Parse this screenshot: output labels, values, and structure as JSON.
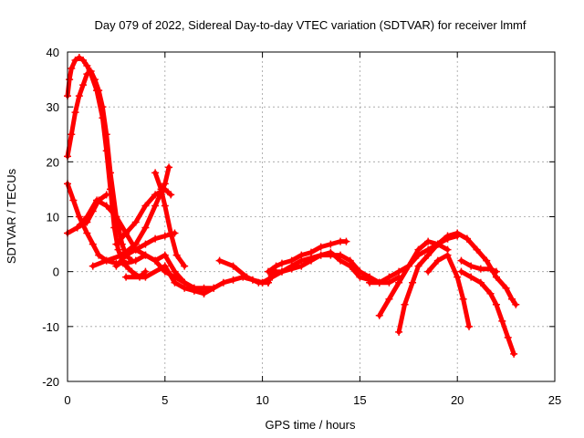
{
  "chart_data": {
    "type": "scatter",
    "title": "Day 079 of 2022, Sidereal Day-to-day VTEC variation (SDTVAR) for receiver lmmf",
    "xlabel": "GPS time / hours",
    "ylabel": "SDTVAR / TECUs",
    "xlim": [
      0,
      25
    ],
    "ylim": [
      -20,
      40
    ],
    "xticks": [
      0,
      5,
      10,
      15,
      20,
      25
    ],
    "yticks": [
      -20,
      -10,
      0,
      10,
      20,
      30,
      40
    ],
    "xtick_labels": [
      "0",
      "5",
      "10",
      "15",
      "20",
      "25"
    ],
    "ytick_labels": [
      "-20",
      "-10",
      "0",
      "10",
      "20",
      "30",
      "40"
    ],
    "grid": true,
    "legend": "none",
    "marker": "+",
    "color": "#ff0000",
    "series": [
      {
        "name": "s1",
        "x": [
          0,
          0.1,
          0.2,
          0.4,
          0.6,
          0.8,
          1.0,
          1.2,
          1.5,
          1.8,
          2.0,
          2.2,
          2.4,
          2.6,
          2.8,
          3.0,
          3.3,
          3.7,
          4.0
        ],
        "y": [
          32,
          35,
          37,
          38.5,
          39,
          38.5,
          37.5,
          36,
          33,
          28,
          22,
          15,
          8,
          4,
          2,
          1,
          0,
          -1,
          0
        ]
      },
      {
        "name": "s2",
        "x": [
          0,
          0.2,
          0.4,
          0.6,
          0.8,
          1.0,
          1.2,
          1.4,
          1.6,
          1.8,
          2.0,
          2.2,
          2.5,
          2.8,
          3.0,
          3.3
        ],
        "y": [
          21,
          25,
          29,
          32,
          34,
          36,
          36.5,
          35,
          33,
          30,
          25,
          18,
          10,
          5,
          3,
          2
        ]
      },
      {
        "name": "s3",
        "x": [
          0,
          0.3,
          0.6,
          1.0,
          1.3,
          1.6,
          2.0,
          2.5,
          3.0,
          3.5,
          4.0,
          4.5,
          5.0,
          5.5,
          6.0,
          6.5,
          7.0,
          7.5,
          8.0,
          8.5,
          9.0,
          9.5,
          10.0
        ],
        "y": [
          16,
          13,
          10,
          7,
          5,
          3,
          2,
          1.5,
          1.5,
          2,
          3,
          2,
          0,
          -1,
          -2,
          -3,
          -3,
          -3,
          -2,
          -1.5,
          -1,
          -1.5,
          -2
        ]
      },
      {
        "name": "s4",
        "x": [
          0,
          0.5,
          1.0,
          1.5,
          2.0,
          2.5,
          3.0,
          3.5,
          4.0,
          4.5,
          5.0,
          5.5,
          6.0,
          6.5,
          7.0
        ],
        "y": [
          7,
          8,
          10,
          13,
          12,
          10,
          7,
          4,
          3,
          2,
          3,
          0,
          -2,
          -3,
          -4
        ]
      },
      {
        "name": "s5",
        "x": [
          0.5,
          1.0,
          1.3,
          1.6,
          2.0
        ],
        "y": [
          8,
          9,
          11,
          13,
          14
        ]
      },
      {
        "name": "s6",
        "x": [
          1.3,
          2.0,
          2.8,
          3.5,
          4.0,
          4.5,
          5.0,
          5.2
        ],
        "y": [
          1,
          2,
          3,
          5,
          8,
          12,
          16,
          19
        ]
      },
      {
        "name": "s7",
        "x": [
          2.5,
          3.0,
          3.5,
          4.0,
          4.5,
          5.0,
          5.3
        ],
        "y": [
          5,
          7,
          9,
          12,
          14,
          15,
          14
        ]
      },
      {
        "name": "s8",
        "x": [
          2.5,
          3.0,
          3.5,
          4.0,
          4.5,
          5.0,
          5.5
        ],
        "y": [
          1,
          3,
          4,
          5,
          6,
          6.5,
          7
        ]
      },
      {
        "name": "s9",
        "x": [
          4.5,
          4.8,
          5.0,
          5.3,
          5.6,
          6.0
        ],
        "y": [
          18,
          15,
          12,
          7,
          3,
          1
        ]
      },
      {
        "name": "s10",
        "x": [
          3.0,
          4.0,
          5.0,
          5.5,
          6.0,
          6.5,
          7.0,
          7.5
        ],
        "y": [
          -1,
          -1,
          1,
          -2,
          -3,
          -3.5,
          -4,
          -3
        ]
      },
      {
        "name": "s11",
        "x": [
          7.8,
          8.5,
          9.2,
          9.8,
          10.3
        ],
        "y": [
          2,
          1,
          -1,
          -2,
          -2
        ]
      },
      {
        "name": "s12",
        "x": [
          10.3,
          10.5,
          11.0,
          11.5,
          12.0,
          12.5,
          13.0,
          13.5,
          14.0,
          14.5,
          15.0,
          15.5,
          16.0,
          16.5,
          17.0
        ],
        "y": [
          -2,
          0,
          0,
          1,
          2,
          2.5,
          3,
          3.5,
          2,
          1,
          -1,
          -1.5,
          -2,
          -2,
          -1
        ]
      },
      {
        "name": "s13",
        "x": [
          10.3,
          10.7,
          11.0,
          11.5,
          12.0,
          12.5,
          13.0,
          13.5,
          14.0,
          14.3
        ],
        "y": [
          0,
          1,
          1.5,
          2,
          3,
          3.5,
          4.5,
          5,
          5.5,
          5.5
        ]
      },
      {
        "name": "s14",
        "x": [
          10.0,
          10.5,
          11.0,
          11.5,
          12.0,
          12.5,
          13.0,
          13.5,
          14.0,
          14.5,
          15.0,
          15.5,
          16.0
        ],
        "y": [
          -2,
          -1,
          0,
          0.5,
          1,
          2,
          3,
          3,
          3,
          2,
          0,
          -1,
          -2
        ]
      },
      {
        "name": "s15",
        "x": [
          15.5,
          16.0,
          16.5,
          17.0,
          17.5,
          18.0,
          18.5,
          19.0,
          19.5,
          20.0
        ],
        "y": [
          -2,
          -2,
          -1,
          0,
          1,
          3,
          4,
          5,
          6,
          6.5
        ]
      },
      {
        "name": "s16",
        "x": [
          16.0,
          16.5,
          17.0,
          17.5,
          18.0,
          18.5,
          19.0,
          19.5
        ],
        "y": [
          -8,
          -5,
          -2,
          1,
          4,
          5.5,
          5,
          4
        ]
      },
      {
        "name": "s17",
        "x": [
          17.0,
          17.3,
          17.7,
          18.0,
          18.5,
          19.0,
          19.5,
          20.0,
          20.5
        ],
        "y": [
          -11,
          -6,
          -2,
          1,
          3,
          5,
          6.5,
          7,
          6
        ]
      },
      {
        "name": "s18",
        "x": [
          18.5,
          19.0,
          19.5,
          20.0,
          20.3,
          20.6
        ],
        "y": [
          0,
          2,
          3,
          -1,
          -5,
          -10
        ]
      },
      {
        "name": "s19",
        "x": [
          19.5,
          20.0,
          20.5,
          21.0,
          21.5,
          22.0,
          22.5,
          22.8,
          23.0
        ],
        "y": [
          6,
          7,
          6,
          4,
          2,
          -1,
          -3,
          -5,
          -6
        ]
      },
      {
        "name": "s20",
        "x": [
          20.2,
          20.7,
          21.2,
          21.7,
          22.0
        ],
        "y": [
          2,
          1,
          0.5,
          0.5,
          0
        ]
      },
      {
        "name": "s21",
        "x": [
          20.2,
          20.7,
          21.2,
          21.7,
          22.0,
          22.3,
          22.6,
          22.9
        ],
        "y": [
          0,
          -1,
          -2,
          -4,
          -6,
          -9,
          -12,
          -15
        ]
      }
    ]
  }
}
